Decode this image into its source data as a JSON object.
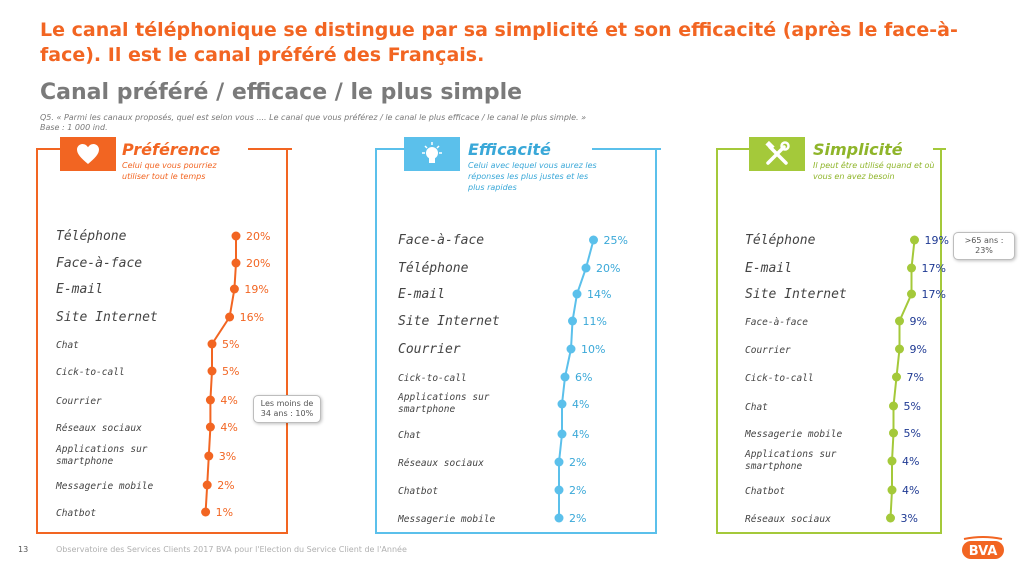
{
  "headline": "Le canal téléphonique se distingue par sa simplicité et son efficacité (après le face-à-face). Il est le canal préféré des Français.",
  "subtitle": "Canal préféré / efficace / le plus simple",
  "question": "Q5. « Parmi les canaux proposés, quel est selon vous .... Le canal que vous préférez / le canal le plus efficace / le canal le plus simple. »",
  "base": "Base : 1 000 ind.",
  "colors": {
    "orange": "#f26522",
    "blue": "#5bc0eb",
    "green": "#a4c93a",
    "darkblue": "#1f3a93"
  },
  "panels": {
    "preference": {
      "title": "Préférence",
      "desc": "Celui que vous pourriez utiliser tout le temps",
      "icon": "heart-icon",
      "callout": "Les moins de 34 ans : 10%"
    },
    "efficacite": {
      "title": "Efficacité",
      "desc": "Celui avec lequel vous aurez les réponses les plus justes et les plus rapides",
      "icon": "lightbulb-icon"
    },
    "simplicite": {
      "title": "Simplicité",
      "desc": "Il peut être utilisé quand et où vous en avez besoin",
      "icon": "tools-icon",
      "callout": ">65 ans : 23%"
    }
  },
  "footer": {
    "page": "13",
    "text": "Observatoire des Services Clients 2017 BVA pour l'Election du Service Client de l'Année"
  },
  "logo": "BVA",
  "chart_data": [
    {
      "type": "line",
      "name": "Préférence",
      "categories": [
        "Téléphone",
        "Face-à-face",
        "E-mail",
        "Site Internet",
        "Chat",
        "Cick-to-call",
        "Courrier",
        "Réseaux sociaux",
        "Applications sur smartphone",
        "Messagerie mobile",
        "Chatbot"
      ],
      "values": [
        20,
        20,
        19,
        16,
        5,
        5,
        4,
        4,
        3,
        2,
        1
      ],
      "labels": [
        "20%",
        "20%",
        "19%",
        "16%",
        "5%",
        "5%",
        "4%",
        "4%",
        "3%",
        "2%",
        "1%"
      ]
    },
    {
      "type": "line",
      "name": "Efficacité",
      "categories": [
        "Face-à-face",
        "Téléphone",
        "E-mail",
        "Site Internet",
        "Courrier",
        "Cick-to-call",
        "Applications sur smartphone",
        "Chat",
        "Réseaux sociaux",
        "Chatbot",
        "Messagerie mobile"
      ],
      "values": [
        25,
        20,
        14,
        11,
        10,
        6,
        4,
        4,
        2,
        2,
        2
      ],
      "labels": [
        "25%",
        "20%",
        "14%",
        "11%",
        "10%",
        "6%",
        "4%",
        "4%",
        "2%",
        "2%",
        "2%"
      ]
    },
    {
      "type": "line",
      "name": "Simplicité",
      "categories": [
        "Téléphone",
        "E-mail",
        "Site Internet",
        "Face-à-face",
        "Courrier",
        "Cick-to-call",
        "Chat",
        "Messagerie mobile",
        "Applications sur smartphone",
        "Chatbot",
        "Réseaux sociaux"
      ],
      "values": [
        19,
        17,
        17,
        9,
        9,
        7,
        5,
        5,
        4,
        4,
        3
      ],
      "labels": [
        "19%",
        "17%",
        "17%",
        "9%",
        "9%",
        "7%",
        "5%",
        "5%",
        "4%",
        "4%",
        "3%"
      ]
    }
  ]
}
